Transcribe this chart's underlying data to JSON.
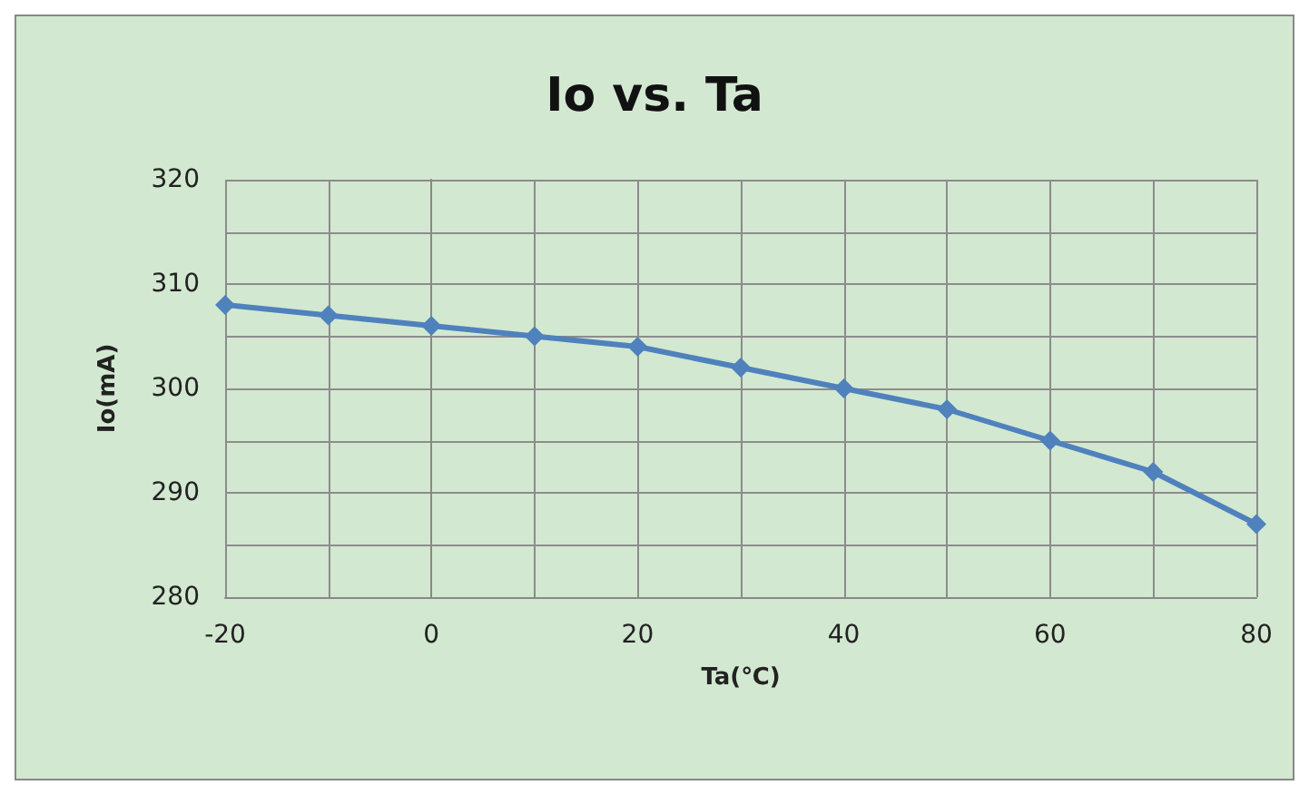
{
  "chart_data": {
    "type": "line",
    "title": "Io vs. Ta",
    "xlabel": "Ta(℃)",
    "ylabel": "Io(mA)",
    "x": [
      -20,
      -10,
      0,
      10,
      20,
      30,
      40,
      50,
      60,
      70,
      80
    ],
    "series": [
      {
        "color": "#4f81bd",
        "values": [
          308,
          307,
          306,
          305,
          304,
          302,
          300,
          298,
          295,
          292,
          287
        ]
      }
    ],
    "xlim": [
      -20,
      80
    ],
    "xticks": [
      -20,
      {
        "value": -10,
        "label": null
      },
      0,
      {
        "value": 10,
        "label": null
      },
      20,
      {
        "value": 30,
        "label": null
      },
      40,
      {
        "value": 50,
        "label": null
      },
      60,
      {
        "value": 70,
        "label": null
      },
      80
    ],
    "ylim": [
      280,
      320
    ],
    "yticks": [
      280,
      {
        "value": 285,
        "label": null
      },
      290,
      {
        "value": 295,
        "label": null
      },
      300,
      {
        "value": 305,
        "label": null
      },
      310,
      {
        "value": 315,
        "label": null
      },
      320
    ],
    "grid": true,
    "marker": "diamond",
    "line_style": "solid"
  }
}
